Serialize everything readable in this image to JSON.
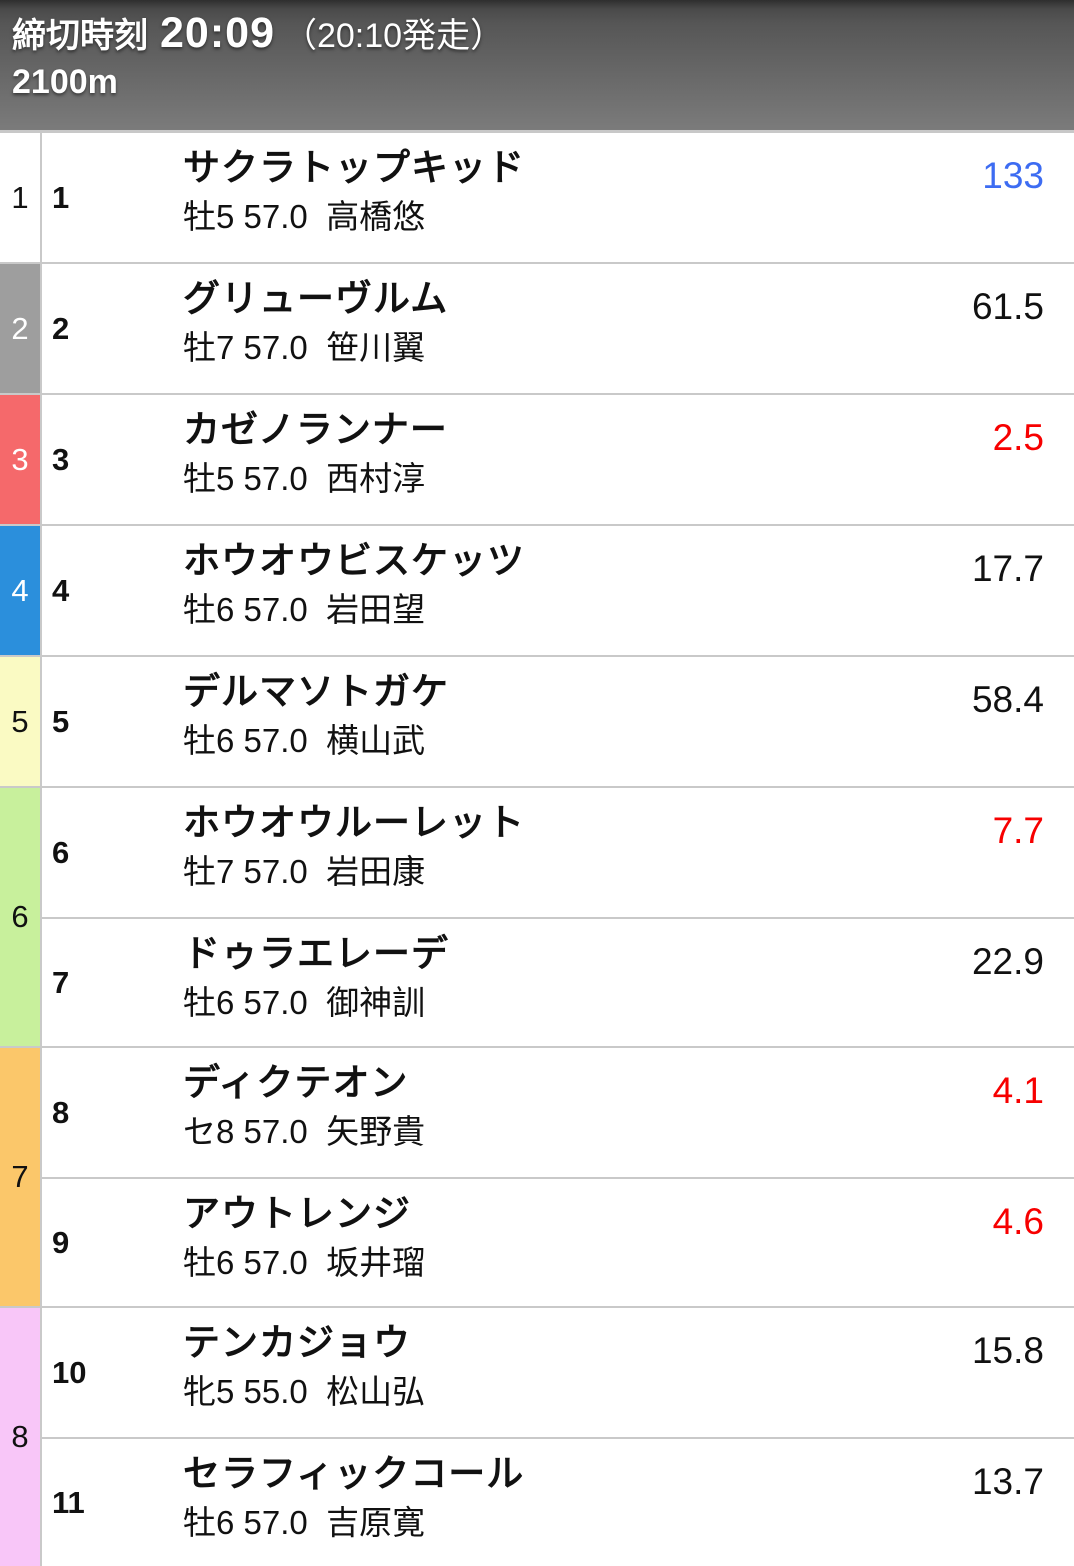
{
  "header": {
    "deadline_label": "締切時刻",
    "deadline_time": "20:09",
    "start_note": "（20:10発走）",
    "distance": "2100m"
  },
  "colors": {
    "odds_black": "#111111",
    "odds_red": "#f70000",
    "odds_blue": "#3d6cf2",
    "row_divider": "#c9c9c9"
  },
  "groups": [
    {
      "bracket": "1",
      "bg": "#ffffff",
      "fg": "#111111",
      "horses": [
        {
          "number": "1",
          "name": "サクラトップキッド",
          "details": "牡5 57.0  高橋悠",
          "odds": "133",
          "odds_color": "#3d6cf2"
        }
      ]
    },
    {
      "bracket": "2",
      "bg": "#9e9e9e",
      "fg": "#ffffff",
      "horses": [
        {
          "number": "2",
          "name": "グリューヴルム",
          "details": "牡7 57.0  笹川翼",
          "odds": "61.5",
          "odds_color": "#111111"
        }
      ]
    },
    {
      "bracket": "3",
      "bg": "#f5696b",
      "fg": "#ffffff",
      "horses": [
        {
          "number": "3",
          "name": "カゼノランナー",
          "details": "牡5 57.0  西村淳",
          "odds": "2.5",
          "odds_color": "#f70000"
        }
      ]
    },
    {
      "bracket": "4",
      "bg": "#2b8fdc",
      "fg": "#ffffff",
      "horses": [
        {
          "number": "4",
          "name": "ホウオウビスケッツ",
          "details": "牡6 57.0  岩田望",
          "odds": "17.7",
          "odds_color": "#111111"
        }
      ]
    },
    {
      "bracket": "5",
      "bg": "#fafac3",
      "fg": "#111111",
      "horses": [
        {
          "number": "5",
          "name": "デルマソトガケ",
          "details": "牡6 57.0  横山武",
          "odds": "58.4",
          "odds_color": "#111111"
        }
      ]
    },
    {
      "bracket": "6",
      "bg": "#c8f09c",
      "fg": "#111111",
      "horses": [
        {
          "number": "6",
          "name": "ホウオウルーレット",
          "details": "牡7 57.0  岩田康",
          "odds": "7.7",
          "odds_color": "#f70000"
        },
        {
          "number": "7",
          "name": "ドゥラエレーデ",
          "details": "牡6 57.0  御神訓",
          "odds": "22.9",
          "odds_color": "#111111"
        }
      ]
    },
    {
      "bracket": "7",
      "bg": "#fbc76a",
      "fg": "#111111",
      "horses": [
        {
          "number": "8",
          "name": "ディクテオン",
          "details": "セ8 57.0  矢野貴",
          "odds": "4.1",
          "odds_color": "#f70000"
        },
        {
          "number": "9",
          "name": "アウトレンジ",
          "details": "牡6 57.0  坂井瑠",
          "odds": "4.6",
          "odds_color": "#f70000"
        }
      ]
    },
    {
      "bracket": "8",
      "bg": "#f8c6f8",
      "fg": "#111111",
      "horses": [
        {
          "number": "10",
          "name": "テンカジョウ",
          "details": "牝5 55.0  松山弘",
          "odds": "15.8",
          "odds_color": "#111111"
        },
        {
          "number": "11",
          "name": "セラフィックコール",
          "details": "牡6 57.0  吉原寛",
          "odds": "13.7",
          "odds_color": "#111111"
        }
      ]
    }
  ]
}
